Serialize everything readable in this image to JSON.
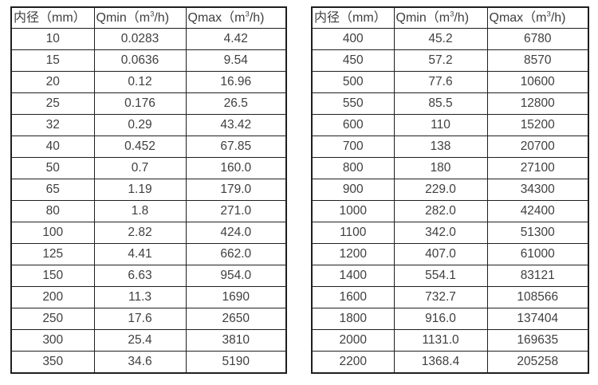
{
  "page": {
    "background": "#ffffff",
    "text_color": "#3f3f3f",
    "border_color": "#1f1f1f"
  },
  "columns": [
    {
      "key": "diameter",
      "label": "内径（mm）"
    },
    {
      "key": "qmin",
      "label_pre": "Qmin（m",
      "label_sup": "3",
      "label_post": "/h)"
    },
    {
      "key": "qmax",
      "label_pre": "Qmax（m",
      "label_sup": "3",
      "label_post": "/h)"
    }
  ],
  "tables": [
    {
      "id": "small-diameters",
      "rows": [
        [
          "10",
          "0.0283",
          "4.42"
        ],
        [
          "15",
          "0.0636",
          "9.54"
        ],
        [
          "20",
          "0.12",
          "16.96"
        ],
        [
          "25",
          "0.176",
          "26.5"
        ],
        [
          "32",
          "0.29",
          "43.42"
        ],
        [
          "40",
          "0.452",
          "67.85"
        ],
        [
          "50",
          "0.7",
          "160.0"
        ],
        [
          "65",
          "1.19",
          "179.0"
        ],
        [
          "80",
          "1.8",
          "271.0"
        ],
        [
          "100",
          "2.82",
          "424.0"
        ],
        [
          "125",
          "4.41",
          "662.0"
        ],
        [
          "150",
          "6.63",
          "954.0"
        ],
        [
          "200",
          "11.3",
          "1690"
        ],
        [
          "250",
          "17.6",
          "2650"
        ],
        [
          "300",
          "25.4",
          "3810"
        ],
        [
          "350",
          "34.6",
          "5190"
        ]
      ]
    },
    {
      "id": "large-diameters",
      "rows": [
        [
          "400",
          "45.2",
          "6780"
        ],
        [
          "450",
          "57.2",
          "8570"
        ],
        [
          "500",
          "77.6",
          "10600"
        ],
        [
          "550",
          "85.5",
          "12800"
        ],
        [
          "600",
          "110",
          "15200"
        ],
        [
          "700",
          "138",
          "20700"
        ],
        [
          "800",
          "180",
          "27100"
        ],
        [
          "900",
          "229.0",
          "34300"
        ],
        [
          "1000",
          "282.0",
          "42400"
        ],
        [
          "1100",
          "342.0",
          "51300"
        ],
        [
          "1200",
          "407.0",
          "61000"
        ],
        [
          "1400",
          "554.1",
          "83121"
        ],
        [
          "1600",
          "732.7",
          "108566"
        ],
        [
          "1800",
          "916.0",
          "137404"
        ],
        [
          "2000",
          "1131.0",
          "169635"
        ],
        [
          "2200",
          "1368.4",
          "205258"
        ]
      ]
    }
  ]
}
